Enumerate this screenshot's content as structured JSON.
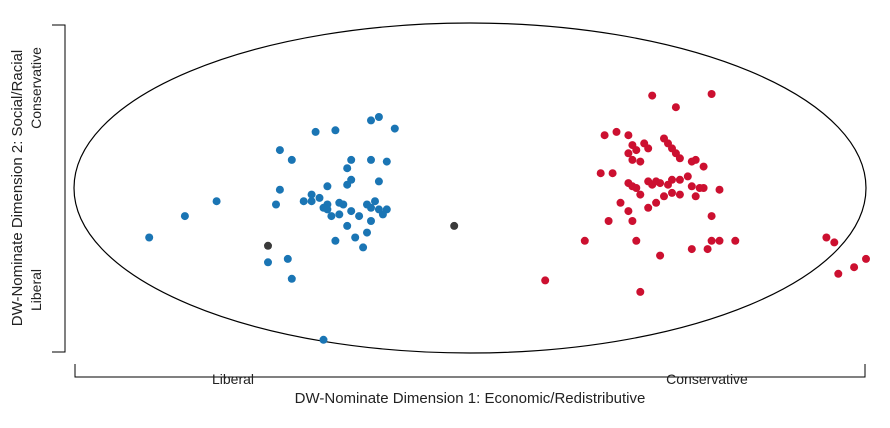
{
  "chart_data": {
    "type": "scatter",
    "title": "",
    "xlabel": "DW-Nominate Dimension 1: Economic/Redistributive",
    "ylabel": "DW-Nominate Dimension 2: Social/Racial",
    "x_end_labels": [
      "Liberal",
      "Conservative"
    ],
    "y_end_labels": [
      "Liberal",
      "Conservative"
    ],
    "xlim": [
      -1,
      1
    ],
    "ylim": [
      -1,
      1
    ],
    "grid": false,
    "legend": "none",
    "colors": {
      "democrat": "#1a75b4",
      "republican": "#cc1030",
      "other": "#3a3a3a",
      "ellipse": "#000000"
    },
    "series": [
      {
        "key": "democrat",
        "points": [
          [
            -0.23,
            0.43
          ],
          [
            -0.25,
            0.41
          ],
          [
            -0.19,
            0.36
          ],
          [
            -0.39,
            0.34
          ],
          [
            -0.34,
            0.35
          ],
          [
            -0.45,
            0.17
          ],
          [
            -0.3,
            0.17
          ],
          [
            -0.25,
            0.17
          ],
          [
            -0.48,
            0.23
          ],
          [
            -0.31,
            0.12
          ],
          [
            -0.21,
            0.16
          ],
          [
            -0.3,
            0.05
          ],
          [
            -0.36,
            0.01
          ],
          [
            -0.31,
            0.02
          ],
          [
            -0.23,
            0.04
          ],
          [
            -0.4,
            -0.04
          ],
          [
            -0.4,
            -0.08
          ],
          [
            -0.38,
            -0.06
          ],
          [
            -0.36,
            -0.1
          ],
          [
            -0.37,
            -0.12
          ],
          [
            -0.36,
            -0.13
          ],
          [
            -0.33,
            -0.09
          ],
          [
            -0.32,
            -0.1
          ],
          [
            -0.35,
            -0.17
          ],
          [
            -0.33,
            -0.16
          ],
          [
            -0.3,
            -0.14
          ],
          [
            -0.28,
            -0.17
          ],
          [
            -0.26,
            -0.1
          ],
          [
            -0.25,
            -0.12
          ],
          [
            -0.24,
            -0.08
          ],
          [
            -0.21,
            -0.13
          ],
          [
            -0.23,
            -0.13
          ],
          [
            -0.25,
            -0.2
          ],
          [
            -0.26,
            -0.27
          ],
          [
            -0.34,
            -0.32
          ],
          [
            -0.31,
            -0.23
          ],
          [
            -0.29,
            -0.3
          ],
          [
            -0.27,
            -0.36
          ],
          [
            -0.22,
            -0.16
          ],
          [
            -0.49,
            -0.1
          ],
          [
            -0.42,
            -0.08
          ],
          [
            -0.64,
            -0.08
          ],
          [
            -0.72,
            -0.17
          ],
          [
            -0.81,
            -0.3
          ],
          [
            -0.51,
            -0.45
          ],
          [
            -0.48,
            -0.01
          ],
          [
            -0.37,
            -0.92
          ],
          [
            -0.45,
            -0.55
          ],
          [
            -0.46,
            -0.43
          ]
        ]
      },
      {
        "key": "republican",
        "points": [
          [
            0.46,
            0.56
          ],
          [
            0.52,
            0.49
          ],
          [
            0.61,
            0.57
          ],
          [
            0.34,
            0.32
          ],
          [
            0.37,
            0.34
          ],
          [
            0.4,
            0.32
          ],
          [
            0.41,
            0.26
          ],
          [
            0.42,
            0.23
          ],
          [
            0.44,
            0.27
          ],
          [
            0.45,
            0.24
          ],
          [
            0.49,
            0.3
          ],
          [
            0.5,
            0.27
          ],
          [
            0.51,
            0.24
          ],
          [
            0.52,
            0.21
          ],
          [
            0.53,
            0.18
          ],
          [
            0.56,
            0.16
          ],
          [
            0.57,
            0.17
          ],
          [
            0.59,
            0.13
          ],
          [
            0.4,
            0.21
          ],
          [
            0.41,
            0.17
          ],
          [
            0.43,
            0.16
          ],
          [
            0.45,
            0.04
          ],
          [
            0.46,
            0.02
          ],
          [
            0.47,
            0.04
          ],
          [
            0.48,
            0.03
          ],
          [
            0.5,
            0.02
          ],
          [
            0.51,
            0.05
          ],
          [
            0.53,
            0.05
          ],
          [
            0.55,
            0.07
          ],
          [
            0.56,
            0.01
          ],
          [
            0.58,
            0.0
          ],
          [
            0.4,
            0.03
          ],
          [
            0.41,
            0.01
          ],
          [
            0.42,
            0.0
          ],
          [
            0.43,
            -0.04
          ],
          [
            0.45,
            -0.12
          ],
          [
            0.47,
            -0.09
          ],
          [
            0.49,
            -0.05
          ],
          [
            0.51,
            -0.03
          ],
          [
            0.53,
            -0.04
          ],
          [
            0.57,
            -0.05
          ],
          [
            0.59,
            0.0
          ],
          [
            0.63,
            -0.01
          ],
          [
            0.36,
            0.09
          ],
          [
            0.33,
            0.09
          ],
          [
            0.38,
            -0.09
          ],
          [
            0.4,
            -0.14
          ],
          [
            0.41,
            -0.2
          ],
          [
            0.35,
            -0.2
          ],
          [
            0.29,
            -0.32
          ],
          [
            0.42,
            -0.32
          ],
          [
            0.48,
            -0.41
          ],
          [
            0.61,
            -0.32
          ],
          [
            0.63,
            -0.32
          ],
          [
            0.67,
            -0.32
          ],
          [
            0.61,
            -0.17
          ],
          [
            0.6,
            -0.37
          ],
          [
            0.56,
            -0.37
          ],
          [
            0.9,
            -0.3
          ],
          [
            0.92,
            -0.33
          ],
          [
            1.0,
            -0.43
          ],
          [
            0.97,
            -0.48
          ],
          [
            0.93,
            -0.52
          ],
          [
            0.19,
            -0.56
          ],
          [
            0.43,
            -0.63
          ]
        ]
      },
      {
        "key": "other",
        "points": [
          [
            -0.51,
            -0.35
          ],
          [
            -0.04,
            -0.23
          ]
        ]
      }
    ]
  }
}
